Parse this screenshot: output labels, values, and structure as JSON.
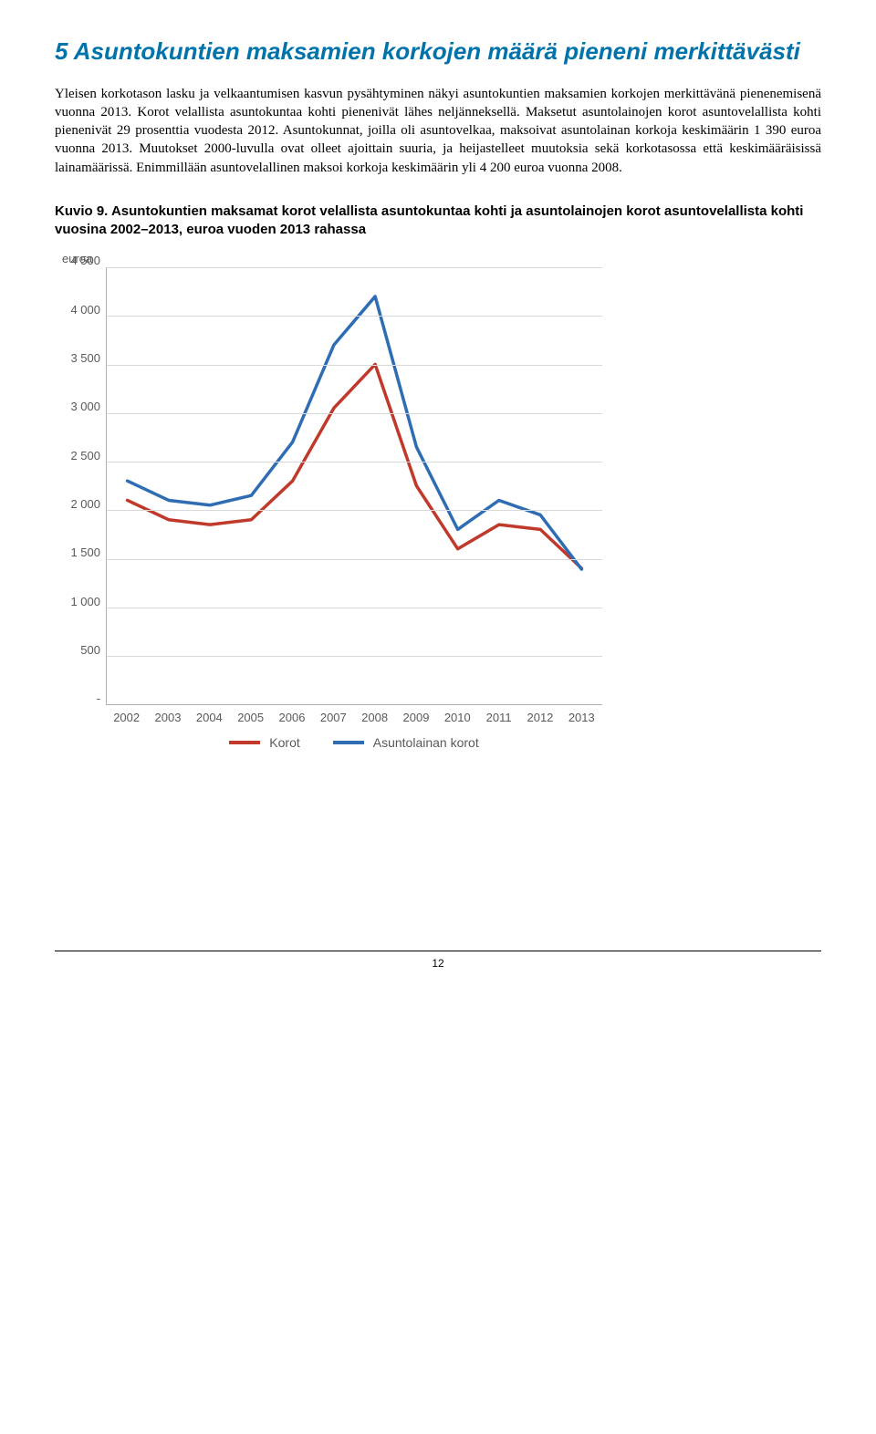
{
  "section": {
    "title": "5 Asuntokuntien maksamien korkojen määrä pieneni merkittävästi",
    "body": "Yleisen korkotason lasku ja velkaantumisen kasvun pysähtyminen näkyi asuntokuntien maksamien korkojen merkittävänä pienenemisenä vuonna 2013. Korot velallista asuntokuntaa kohti pienenivät lähes neljänneksellä. Maksetut asuntolainojen korot asuntovelallista kohti pienenivät 29 prosenttia vuodesta 2012. Asuntokunnat, joilla oli asuntovelkaa, maksoivat asuntolainan korkoja keskimäärin 1 390 euroa vuonna 2013. Muutokset 2000-luvulla ovat olleet ajoittain suuria, ja heijastelleet muutoksia sekä korkotasossa että keskimääräisissä lainamäärissä. Enimmillään asuntovelallinen maksoi korkoja keskimäärin yli 4 200 euroa vuonna 2008."
  },
  "figure": {
    "caption_prefix": "Kuvio 9.",
    "caption_rest": " Asuntokuntien maksamat korot velallista asuntokuntaa kohti ja asuntolainojen korot asuntovelallista kohti vuosina 2002–2013, euroa vuoden 2013 rahassa"
  },
  "chart": {
    "type": "line",
    "y_unit_label": "euroa",
    "categories": [
      "2002",
      "2003",
      "2004",
      "2005",
      "2006",
      "2007",
      "2008",
      "2009",
      "2010",
      "2011",
      "2012",
      "2013"
    ],
    "y_ticks": [
      "4 500",
      "4 000",
      "3 500",
      "3 000",
      "2 500",
      "2 000",
      "1 500",
      "1 000",
      "500",
      "-"
    ],
    "ylim_max": 4500,
    "series": [
      {
        "name": "Korot",
        "color": "#c0392b",
        "values": [
          2100,
          1900,
          1850,
          1900,
          2300,
          3050,
          3500,
          2250,
          1600,
          1850,
          1800,
          1400
        ]
      },
      {
        "name": "Asuntolainan korot",
        "color": "#2e6db4",
        "values": [
          2300,
          2100,
          2050,
          2150,
          2700,
          3700,
          4200,
          2650,
          1800,
          2100,
          1950,
          1390
        ]
      }
    ],
    "background_color": "#ffffff",
    "grid_color": "#d9d9d9",
    "axis_color": "#b0b0b0",
    "line_width": 3.5,
    "label_fontsize": 13,
    "label_color": "#595959"
  },
  "footer": {
    "page_number": "12"
  }
}
